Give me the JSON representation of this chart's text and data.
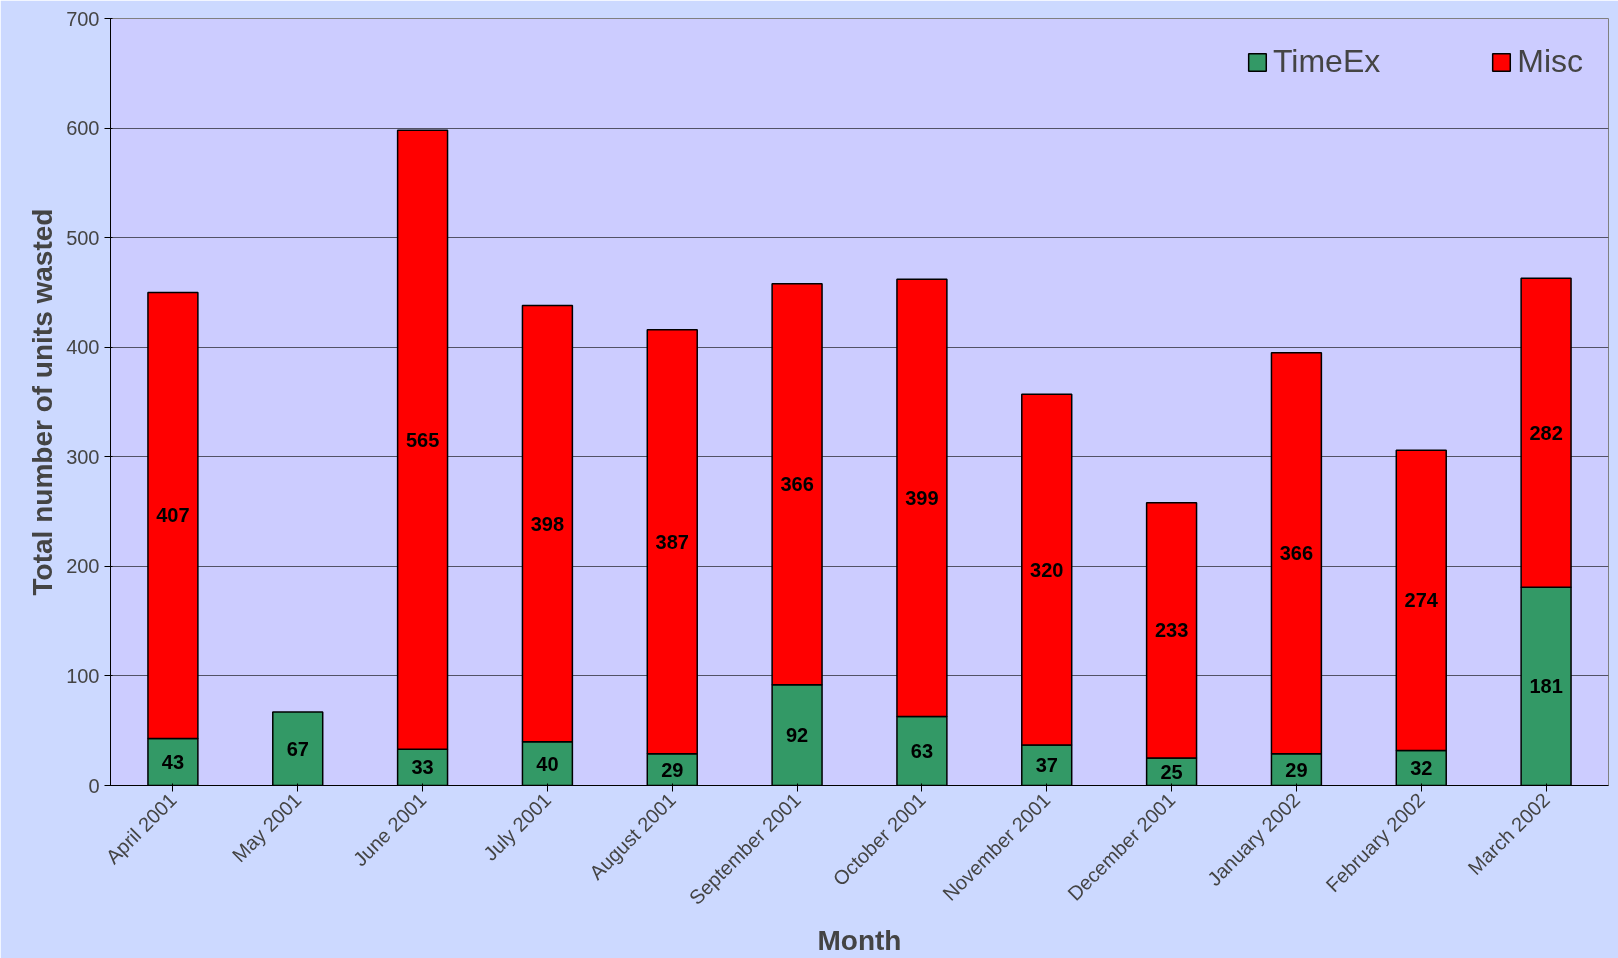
{
  "chart_data": {
    "type": "bar",
    "stacked": true,
    "xlabel": "Month",
    "ylabel": "Total number of units wasted",
    "categories": [
      "April 2001",
      "May 2001",
      "June 2001",
      "July 2001",
      "August 2001",
      "September 2001",
      "October 2001",
      "November 2001",
      "December 2001",
      "January 2002",
      "February 2002",
      "March 2002"
    ],
    "series": [
      {
        "name": "TimeEx",
        "color": "#339966",
        "values": [
          43,
          67,
          33,
          40,
          29,
          92,
          63,
          37,
          25,
          29,
          32,
          181
        ]
      },
      {
        "name": "Misc",
        "color": "#ff0000",
        "values": [
          407,
          null,
          565,
          398,
          387,
          366,
          399,
          320,
          233,
          366,
          274,
          282
        ]
      }
    ],
    "ylim": [
      0,
      700
    ],
    "yticks": [
      0,
      100,
      200,
      300,
      400,
      500,
      600,
      700
    ],
    "grid": "y",
    "legend": "top right",
    "data_labels": true
  }
}
